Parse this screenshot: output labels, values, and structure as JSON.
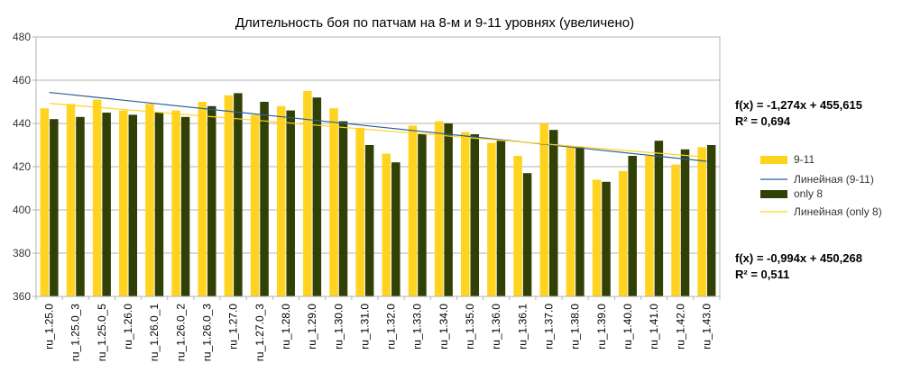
{
  "chart_data": {
    "type": "bar",
    "title": "Длительность боя по патчам на 8-м и 9-11 уровнях (увеличено)",
    "xlabel": "",
    "ylabel": "",
    "ylim": [
      360,
      480
    ],
    "yticks": [
      360,
      380,
      400,
      420,
      440,
      460,
      480
    ],
    "grid": true,
    "legend_position": "right",
    "categories": [
      "ru_1.25.0",
      "ru_1.25.0_3",
      "ru_1.25.0_5",
      "ru_1.26.0",
      "ru_1.26.0_1",
      "ru_1.26.0_2",
      "ru_1.26.0_3",
      "ru_1.27.0",
      "ru_1.27.0_3",
      "ru_1.28.0",
      "ru_1.29.0",
      "ru_1.30.0",
      "ru_1.31.0",
      "ru_1.32.0",
      "ru_1.33.0",
      "ru_1.34.0",
      "ru_1.35.0",
      "ru_1.36.0",
      "ru_1.36.1",
      "ru_1.37.0",
      "ru_1.38.0",
      "ru_1.39.0",
      "ru_1.40.0",
      "ru_1.41.0",
      "ru_1.42.0",
      "ru_1.43.0"
    ],
    "series": [
      {
        "name": "9-11",
        "color": "#ffd320",
        "values": [
          447,
          449,
          451,
          446,
          449,
          446,
          450,
          453,
          444,
          448,
          455,
          447,
          438,
          426,
          439,
          441,
          436,
          431,
          425,
          440,
          429,
          414,
          418,
          425,
          421,
          429
        ]
      },
      {
        "name": "only 8",
        "color": "#314004",
        "values": [
          442,
          443,
          445,
          444,
          445,
          443,
          448,
          454,
          450,
          446,
          452,
          441,
          430,
          422,
          435,
          440,
          435,
          432,
          417,
          437,
          429,
          413,
          425,
          432,
          428,
          430
        ]
      }
    ],
    "trendlines": [
      {
        "name": "Линейная (9-11)",
        "color": "#2a6099",
        "slope": -1.274,
        "intercept": 455.615,
        "equation": "f(x) = -1,274x + 455,615",
        "r2": "R² = 0,694"
      },
      {
        "name": "Линейная (only 8)",
        "color": "#ffd320",
        "slope": -0.994,
        "intercept": 450.268,
        "equation": "f(x) = -0,994x + 450,268",
        "r2": "R² = 0,511"
      }
    ]
  }
}
